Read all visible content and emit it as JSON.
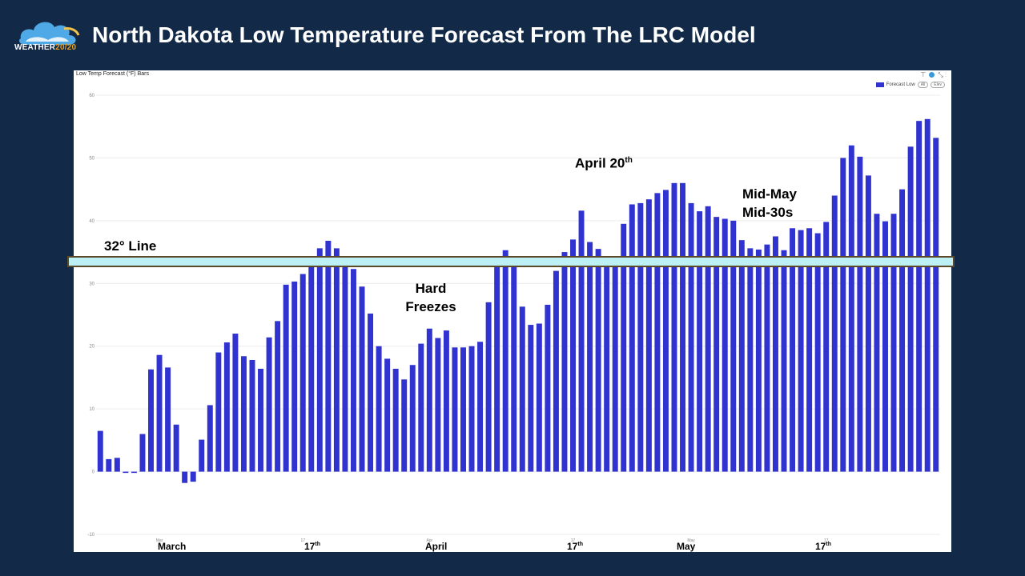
{
  "header": {
    "logo_text_main": "WEATHER",
    "logo_text_accent": "20/20",
    "title": "North Dakota Low Temperature Forecast From The LRC Model"
  },
  "panel": {
    "title": "Low Temp Forecast (°F) Bars",
    "legend_label": "Forecast Low",
    "legend_pill_1": "All",
    "legend_pill_2": "Elev"
  },
  "annotations": {
    "freeze_line": "32° Line",
    "hard_freezes_1": "Hard",
    "hard_freezes_2": "Freezes",
    "april20": "April 20",
    "april20_sup": "th",
    "midmay_1": "Mid-May",
    "midmay_2": "Mid-30s"
  },
  "month_labels": [
    {
      "text": "March",
      "sup": ""
    },
    {
      "text": "17",
      "sup": "th"
    },
    {
      "text": "April",
      "sup": ""
    },
    {
      "text": "17",
      "sup": "th"
    },
    {
      "text": "May",
      "sup": ""
    },
    {
      "text": "17",
      "sup": "th"
    }
  ],
  "colors": {
    "bar": "#3133d1",
    "background": "#122a47",
    "freeze_band": "#bdf0f4"
  },
  "chart_data": {
    "type": "bar",
    "title": "Low Temp Forecast (°F) Bars",
    "series": [
      {
        "name": "Forecast Low",
        "values": [
          6.5,
          2,
          2.2,
          -0.2,
          -0.2,
          6,
          16.3,
          18.6,
          16.6,
          7.5,
          -1.8,
          -1.6,
          5.1,
          10.6,
          19,
          20.6,
          22,
          18.4,
          17.8,
          16.4,
          21.4,
          24,
          29.8,
          30.3,
          31.5,
          33,
          35.6,
          36.8,
          35.6,
          34,
          32.3,
          29.5,
          25.2,
          20,
          18,
          16.4,
          14.7,
          17,
          20.4,
          22.8,
          21.3,
          22.5,
          19.8,
          19.8,
          20,
          20.7,
          27,
          34,
          35.3,
          32.6,
          26.3,
          23.4,
          23.6,
          26.6,
          32,
          35,
          37,
          41.6,
          36.6,
          35.5,
          33,
          33,
          39.5,
          42.6,
          42.8,
          43.4,
          44.4,
          44.9,
          46,
          46,
          42.8,
          41.5,
          42.3,
          40.6,
          40.3,
          40,
          36.9,
          35.6,
          35.4,
          36.2,
          37.5,
          35.3,
          38.8,
          38.5,
          38.8,
          38,
          39.8,
          44,
          50,
          52,
          50.2,
          47.2,
          41.1,
          39.9,
          41.1,
          45,
          51.8,
          55.9,
          56.2,
          53.2
        ]
      }
    ],
    "ylim": [
      -10,
      60
    ],
    "yticks": [
      -10,
      0,
      10,
      20,
      30,
      40,
      50,
      60
    ],
    "xticks": [
      {
        "index": 7,
        "label": "Mar"
      },
      {
        "index": 24,
        "label": "17"
      },
      {
        "index": 39,
        "label": "Apr"
      },
      {
        "index": 56,
        "label": "17"
      },
      {
        "index": 70,
        "label": "May"
      },
      {
        "index": 86,
        "label": "17"
      }
    ],
    "reference_line": 32,
    "grid": true,
    "legend_position": "top-right"
  }
}
